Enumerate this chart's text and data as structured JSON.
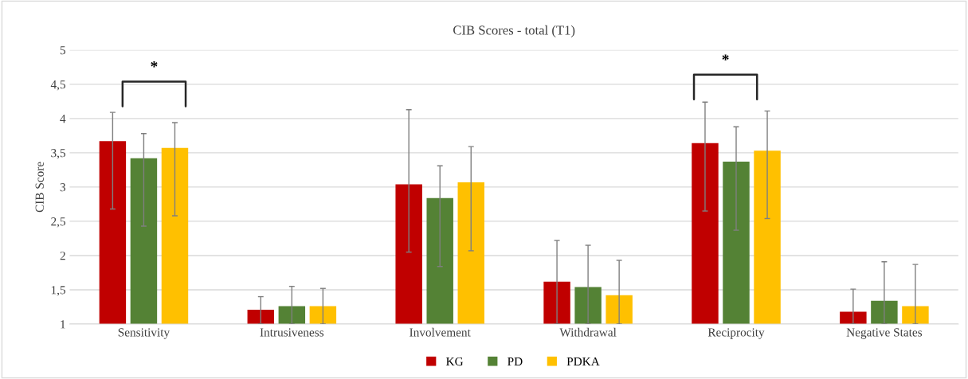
{
  "chart_data": {
    "type": "bar",
    "title": "CIB Scores - total (T1)",
    "ylabel": "CIB Score",
    "categories": [
      "Sensitivity",
      "Intrusiveness",
      "Involvement",
      "Withdrawal",
      "Reciprocity",
      "Negative States"
    ],
    "series": [
      {
        "name": "KG",
        "color": "#c00000",
        "values": [
          3.67,
          1.21,
          3.04,
          1.62,
          3.64,
          1.18
        ],
        "errors": [
          [
            2.68,
            4.09
          ],
          [
            1.0,
            1.4
          ],
          [
            2.05,
            4.13
          ],
          [
            1.0,
            2.22
          ],
          [
            2.65,
            4.24
          ],
          [
            1.0,
            1.51
          ]
        ]
      },
      {
        "name": "PD",
        "color": "#548235",
        "values": [
          3.42,
          1.26,
          2.84,
          1.54,
          3.37,
          1.34
        ],
        "errors": [
          [
            2.43,
            3.78
          ],
          [
            1.0,
            1.55
          ],
          [
            1.84,
            3.31
          ],
          [
            1.0,
            2.15
          ],
          [
            2.37,
            3.88
          ],
          [
            1.0,
            1.91
          ]
        ]
      },
      {
        "name": "PDKA",
        "color": "#ffc000",
        "values": [
          3.57,
          1.26,
          3.07,
          1.42,
          3.53,
          1.26
        ],
        "errors": [
          [
            2.58,
            3.94
          ],
          [
            1.0,
            1.52
          ],
          [
            2.07,
            3.59
          ],
          [
            1.0,
            1.93
          ],
          [
            2.54,
            4.11
          ],
          [
            1.0,
            1.87
          ]
        ]
      }
    ],
    "ylim": [
      1,
      5
    ],
    "yticks": [
      1,
      {
        "value": 1.5,
        "label": "1,5"
      },
      2,
      {
        "value": 2.5,
        "label": "2,5"
      },
      3,
      {
        "value": 3.5,
        "label": "3,5"
      },
      4,
      {
        "value": 4.5,
        "label": "4,5"
      },
      5
    ],
    "grid": "y",
    "legend": "bottom",
    "annotations": [
      "*",
      "*"
    ]
  }
}
